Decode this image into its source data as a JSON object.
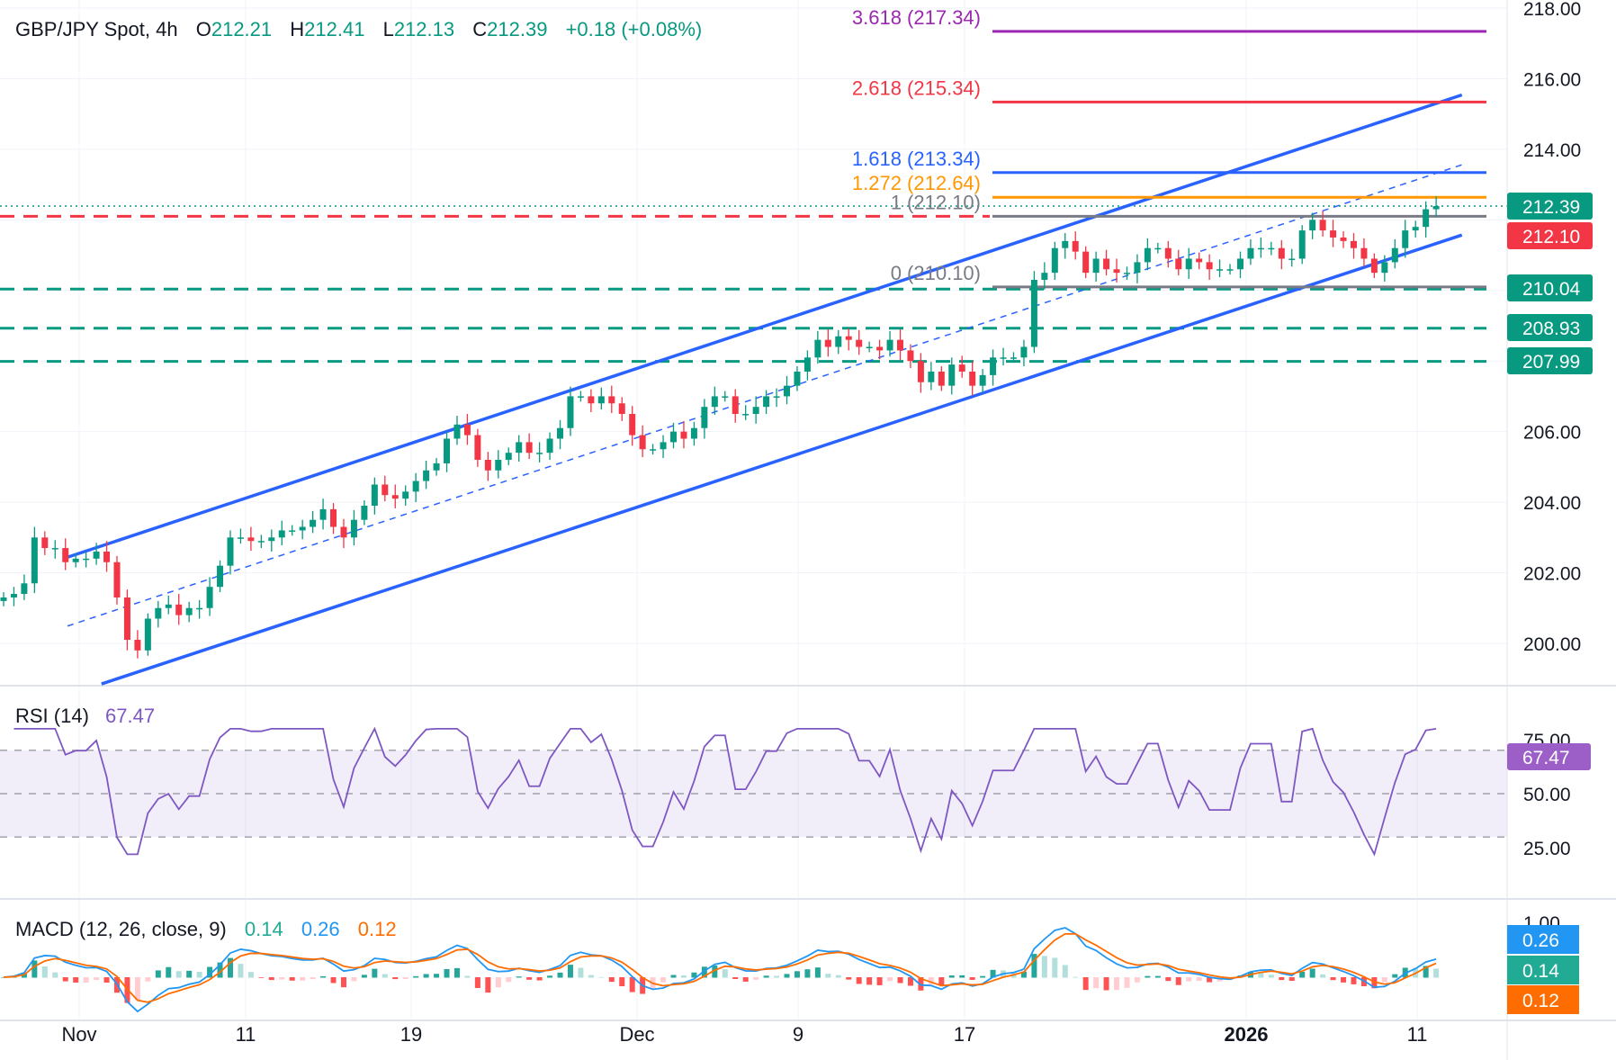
{
  "header": {
    "symbol": "GBP/JPY Spot, 4h",
    "o_label": "O",
    "open": "212.21",
    "h_label": "H",
    "high": "212.41",
    "l_label": "L",
    "low": "212.13",
    "c_label": "C",
    "close": "212.39",
    "change": "+0.18 (+0.08%)"
  },
  "colors": {
    "up": "#089981",
    "down": "#f23645",
    "channel": "#2962ff",
    "rsi": "#7e57c2",
    "macd": "#2196f3",
    "signal": "#ff6d00"
  },
  "chart_data": {
    "type": "candlestick",
    "price_axis": {
      "ticks": [
        "218.00",
        "216.00",
        "214.00",
        "206.00",
        "204.00",
        "202.00",
        "200.00"
      ],
      "range": [
        199,
        218.2
      ]
    },
    "time_axis": {
      "ticks": [
        "Nov",
        "11",
        "19",
        "Dec",
        "9",
        "17",
        "2026",
        "11"
      ]
    },
    "closes": [
      201.3,
      201.4,
      201.7,
      203.0,
      202.7,
      202.7,
      202.3,
      202.4,
      202.4,
      202.6,
      202.3,
      201.3,
      200.1,
      199.8,
      200.7,
      201.0,
      201.1,
      200.8,
      201.0,
      201.0,
      201.6,
      202.2,
      203.0,
      203.0,
      202.9,
      202.9,
      203.0,
      203.2,
      203.2,
      203.3,
      203.5,
      203.8,
      203.3,
      203.0,
      203.5,
      203.9,
      204.5,
      204.2,
      204.1,
      204.3,
      204.6,
      204.9,
      205.1,
      205.8,
      206.2,
      205.9,
      205.2,
      204.9,
      205.2,
      205.4,
      205.7,
      205.4,
      205.4,
      205.8,
      206.1,
      207.0,
      207.0,
      206.8,
      207.0,
      206.8,
      206.5,
      205.9,
      205.5,
      205.5,
      205.7,
      206.0,
      205.8,
      206.1,
      206.7,
      207.0,
      207.0,
      206.5,
      206.5,
      206.7,
      207.0,
      207.0,
      207.3,
      207.7,
      208.1,
      208.6,
      208.4,
      208.7,
      208.6,
      208.4,
      208.4,
      208.3,
      208.6,
      208.3,
      208.0,
      207.4,
      207.7,
      207.3,
      207.9,
      207.7,
      207.3,
      207.6,
      208.1,
      208.1,
      208.1,
      208.4,
      210.3,
      210.5,
      211.2,
      211.4,
      211.1,
      210.5,
      210.9,
      210.6,
      210.5,
      210.5,
      210.8,
      211.2,
      211.2,
      210.9,
      210.6,
      210.9,
      210.8,
      210.6,
      210.6,
      210.6,
      210.9,
      211.2,
      211.2,
      211.2,
      210.9,
      210.9,
      211.7,
      212.0,
      211.7,
      211.5,
      211.4,
      211.2,
      210.9,
      210.5,
      210.8,
      211.2,
      211.7,
      211.8,
      212.3,
      212.39
    ],
    "fibonacci": [
      {
        "label": "3.618 (217.34)",
        "price": 217.34,
        "color": "#9c27b0"
      },
      {
        "label": "2.618 (215.34)",
        "price": 215.34,
        "color": "#f23645"
      },
      {
        "label": "1.618 (213.34)",
        "price": 213.34,
        "color": "#2962ff"
      },
      {
        "label": "1.272 (212.64)",
        "price": 212.64,
        "color": "#ff9800"
      },
      {
        "label": "1 (212.10)",
        "price": 212.1,
        "color": "#787b86"
      },
      {
        "label": "0 (210.10)",
        "price": 210.1,
        "color": "#787b86"
      }
    ],
    "levels": [
      {
        "label": "212.39",
        "price": 212.39,
        "color": "#089981",
        "style": "dotted"
      },
      {
        "label": "212.10",
        "price": 212.1,
        "color": "#f23645",
        "style": "dashed"
      },
      {
        "label": "210.04",
        "price": 210.04,
        "color": "#089981",
        "style": "dashed"
      },
      {
        "label": "208.93",
        "price": 208.93,
        "color": "#089981",
        "style": "dashed"
      },
      {
        "label": "207.99",
        "price": 207.99,
        "color": "#089981",
        "style": "dashed"
      }
    ],
    "channel": {
      "upper": [
        202.44,
        215.54
      ],
      "middle": [
        200.49,
        213.56
      ],
      "lower": [
        198.85,
        211.57
      ]
    }
  },
  "rsi": {
    "label": "RSI (14)",
    "value": "67.47",
    "ticks": [
      "75.00",
      "50.00",
      "25.00"
    ]
  },
  "macd": {
    "label": "MACD (12, 26, close, 9)",
    "hist": "0.14",
    "macd": "0.26",
    "signal": "0.12",
    "ticks": [
      "1.00"
    ]
  }
}
